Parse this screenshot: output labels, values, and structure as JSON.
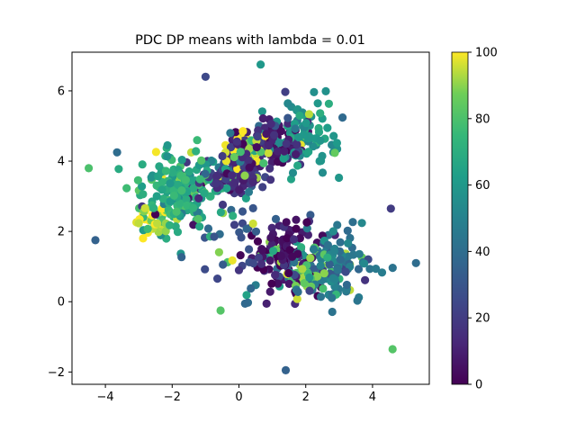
{
  "chart_data": {
    "type": "scatter",
    "title": "PDC DP means with lambda = 0.01",
    "xlabel": "",
    "ylabel": "",
    "xlim": [
      -5.0,
      5.7
    ],
    "ylim": [
      -2.35,
      7.1
    ],
    "xticks": [
      -4,
      -2,
      0,
      2,
      4
    ],
    "xtick_labels": [
      "−4",
      "−2",
      "0",
      "2",
      "4"
    ],
    "yticks": [
      -2,
      0,
      2,
      4,
      6
    ],
    "ytick_labels": [
      "−2",
      "0",
      "2",
      "4",
      "6"
    ],
    "grid": false,
    "colormap": "viridis",
    "colorbar": {
      "range": [
        0,
        100
      ],
      "ticks": [
        0,
        20,
        40,
        60,
        80,
        100
      ],
      "tick_labels": [
        "0",
        "20",
        "40",
        "60",
        "80",
        "100"
      ]
    },
    "point_count": 900,
    "clusters": [
      {
        "center": [
          -1.8,
          3.1
        ],
        "spread": [
          0.9,
          0.9
        ],
        "count": 170,
        "color_value": 70
      },
      {
        "center": [
          -0.2,
          3.6
        ],
        "spread": [
          0.8,
          0.6
        ],
        "count": 130,
        "color_value": 15
      },
      {
        "center": [
          1.0,
          4.5
        ],
        "spread": [
          0.7,
          0.5
        ],
        "count": 100,
        "color_value": 8
      },
      {
        "center": [
          1.9,
          4.7
        ],
        "spread": [
          0.9,
          0.9
        ],
        "count": 90,
        "color_value": 60
      },
      {
        "center": [
          1.4,
          1.3
        ],
        "spread": [
          0.7,
          0.8
        ],
        "count": 130,
        "color_value": 5
      },
      {
        "center": [
          2.8,
          1.0
        ],
        "spread": [
          0.9,
          0.9
        ],
        "count": 120,
        "color_value": 45
      },
      {
        "center": [
          -2.6,
          2.3
        ],
        "spread": [
          0.5,
          0.4
        ],
        "count": 40,
        "color_value": 95
      },
      {
        "center": [
          2.1,
          0.8
        ],
        "spread": [
          0.5,
          0.4
        ],
        "count": 40,
        "color_value": 85
      },
      {
        "center": [
          0.2,
          4.3
        ],
        "spread": [
          0.5,
          0.5
        ],
        "count": 40,
        "color_value": 100
      },
      {
        "center": [
          0.0,
          1.5
        ],
        "spread": [
          1.2,
          1.3
        ],
        "count": 40,
        "color_value": 30
      }
    ],
    "outliers": [
      {
        "x": -4.5,
        "y": 3.8,
        "v": 80
      },
      {
        "x": -4.3,
        "y": 1.75,
        "v": 35
      },
      {
        "x": -3.65,
        "y": 4.25,
        "v": 40
      },
      {
        "x": 1.4,
        "y": -1.95,
        "v": 35
      },
      {
        "x": 4.6,
        "y": -1.35,
        "v": 82
      },
      {
        "x": 5.3,
        "y": 1.1,
        "v": 40
      },
      {
        "x": 4.55,
        "y": 2.65,
        "v": 20
      },
      {
        "x": 0.65,
        "y": 6.75,
        "v": 60
      },
      {
        "x": -1.0,
        "y": 6.4,
        "v": 25
      },
      {
        "x": -0.55,
        "y": -0.25,
        "v": 82
      }
    ]
  }
}
